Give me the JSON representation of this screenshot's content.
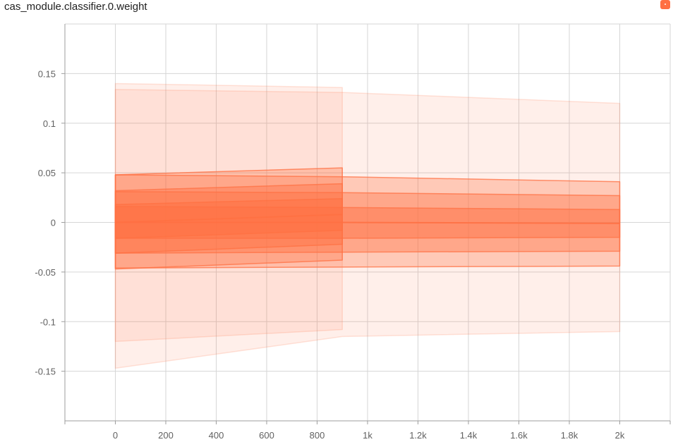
{
  "chart_data": {
    "type": "area",
    "title": "cas_module.classifier.0.weight",
    "xlabel": "",
    "ylabel": "",
    "xlim": [
      -200,
      2200
    ],
    "ylim": [
      -0.2,
      0.2
    ],
    "x_ticks": [
      0,
      200,
      400,
      600,
      800,
      1000,
      1200,
      1400,
      1600,
      1800,
      2000
    ],
    "x_tick_labels": [
      "0",
      "200",
      "400",
      "600",
      "800",
      "1k",
      "1.2k",
      "1.4k",
      "1.6k",
      "1.8k",
      "2k"
    ],
    "y_ticks": [
      0.15,
      0.1,
      0.05,
      0,
      -0.05,
      -0.1,
      -0.15
    ],
    "y_tick_labels": [
      "0.15",
      "0.1",
      "0.05",
      "0",
      "-0.05",
      "-0.1",
      "-0.15"
    ],
    "grid": true,
    "color": "#ff7043",
    "series": [
      {
        "x": [
          0,
          900
        ],
        "bands": [
          {
            "upper": [
              0.14,
              0.136
            ],
            "lower": [
              -0.12,
              -0.108
            ]
          },
          {
            "upper": [
              0.048,
              0.055
            ],
            "lower": [
              -0.047,
              -0.038
            ]
          },
          {
            "upper": [
              0.032,
              0.039
            ],
            "lower": [
              -0.031,
              -0.022
            ]
          },
          {
            "upper": [
              0.018,
              0.024
            ],
            "lower": [
              -0.016,
              -0.008
            ]
          }
        ],
        "median": [
          0.0,
          0.008
        ]
      },
      {
        "x": [
          0,
          900,
          2000
        ],
        "bands": [
          {
            "upper": [
              0.134,
              0.131,
              0.12
            ],
            "lower": [
              -0.147,
              -0.115,
              -0.11
            ]
          },
          {
            "upper": [
              0.048,
              0.046,
              0.041
            ],
            "lower": [
              -0.046,
              -0.045,
              -0.044
            ]
          },
          {
            "upper": [
              0.031,
              0.03,
              0.027
            ],
            "lower": [
              -0.031,
              -0.03,
              -0.029
            ]
          },
          {
            "upper": [
              0.016,
              0.015,
              0.013
            ],
            "lower": [
              -0.016,
              -0.016,
              -0.015
            ]
          }
        ],
        "median": [
          0.0,
          0.0,
          -0.001
        ]
      }
    ]
  }
}
